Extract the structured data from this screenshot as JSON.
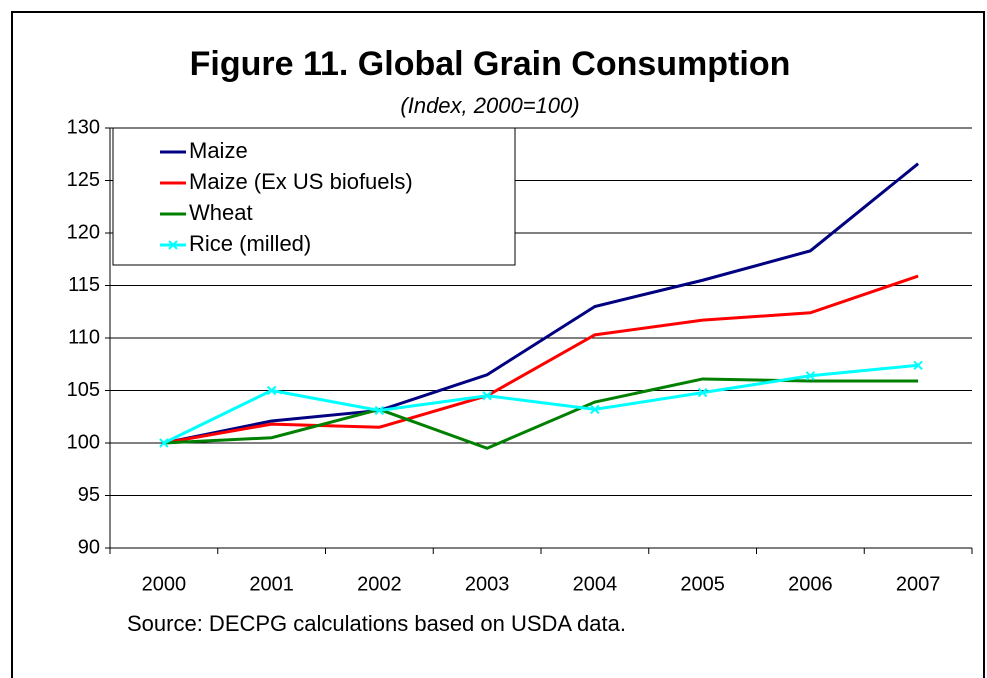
{
  "chart_data": {
    "type": "line",
    "title": "Figure 11. Global Grain Consumption",
    "subtitle": "(Index, 2000=100)",
    "source": "Source: DECPG calculations based on USDA data.",
    "categories": [
      "2000",
      "2001",
      "2002",
      "2003",
      "2004",
      "2005",
      "2006",
      "2007"
    ],
    "series": [
      {
        "name": "Maize",
        "color": "#000080",
        "values": [
          100,
          102.1,
          103.1,
          106.5,
          113,
          115.5,
          118.3,
          126.6
        ]
      },
      {
        "name": "Maize (Ex US biofuels)",
        "color": "#ff0000",
        "values": [
          100,
          101.8,
          101.5,
          104.5,
          110.3,
          111.7,
          112.4,
          115.9
        ]
      },
      {
        "name": "Wheat",
        "color": "#008000",
        "values": [
          100,
          100.5,
          103.2,
          99.5,
          103.9,
          106.1,
          105.9,
          105.9
        ]
      },
      {
        "name": "Rice (milled)",
        "color": "#00ffff",
        "marker": "x",
        "values": [
          100,
          105,
          103.1,
          104.5,
          103.2,
          104.8,
          106.4,
          107.4
        ]
      }
    ],
    "ylim": [
      90,
      130
    ],
    "yticks": [
      90,
      95,
      100,
      105,
      110,
      115,
      120,
      125,
      130
    ],
    "grid": true,
    "legend": "upper left"
  }
}
